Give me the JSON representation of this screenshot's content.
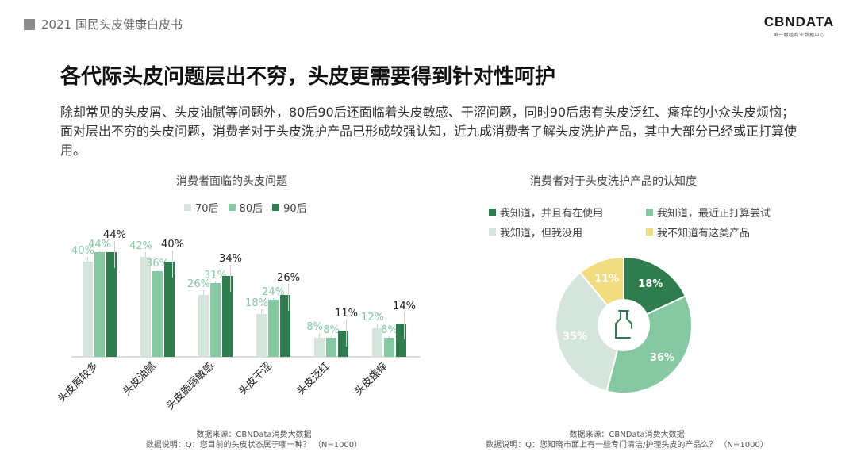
{
  "header": {
    "report_title": "2021 国民头皮健康白皮书",
    "logo": "CBNDATA",
    "logo_sub": "第一财经商业数据中心"
  },
  "title": "各代际头皮问题层出不穷，头皮更需要得到针对性呵护",
  "description": "除却常见的头皮屑、头皮油腻等问题外，80后90后还面临着头皮敏感、干涩问题，同时90后患有头皮泛红、瘙痒的小众头皮烦恼；面对层出不穷的头皮问题，消费者对于头皮洗护产品已形成较强认知，近九成消费者了解头皮洗护产品，其中大部分已经或正打算使用。",
  "watermark": "CBNData",
  "colors": {
    "c70": "#d6e5dc",
    "c80": "#86c8a2",
    "c90": "#2f7d4f",
    "c90label": "#222222"
  },
  "left_chart": {
    "title": "消费者面临的头皮问题",
    "source_line1": "数据来源：CBNData消费大数据",
    "source_line2": "数据说明：Q：您目前的头皮状态属于哪一种？ （N=1000）"
  },
  "right_chart": {
    "title": "消费者对于头皮洗护产品的认知度",
    "source_line1": "数据来源：CBNData消费大数据",
    "source_line2": "数据说明：Q：您知晓市面上有一些专门清洁/护理头皮的产品么？ （N=1000）",
    "center_icon": "bottle-icon"
  },
  "chart_data": [
    {
      "type": "bar",
      "title": "消费者面临的头皮问题",
      "categories": [
        "头皮屑较多",
        "头皮油腻",
        "头皮脆弱敏感",
        "头皮干涩",
        "头皮泛红",
        "头皮瘙痒"
      ],
      "series": [
        {
          "name": "70后",
          "values": [
            40,
            42,
            26,
            18,
            8,
            12
          ],
          "labels": [
            "40%",
            "42%",
            "26%",
            "18%",
            "8%",
            "12%"
          ],
          "color": "#d6e5dc"
        },
        {
          "name": "80后",
          "values": [
            44,
            36,
            31,
            24,
            8,
            8
          ],
          "labels": [
            "44%",
            "36%",
            "31%",
            "24%",
            "8%",
            "8%"
          ],
          "color": "#86c8a2"
        },
        {
          "name": "90后",
          "values": [
            44,
            40,
            34,
            26,
            11,
            14
          ],
          "labels": [
            "44%",
            "40%",
            "34%",
            "26%",
            "11%",
            "14%"
          ],
          "color": "#2f7d4f"
        }
      ],
      "ylim": [
        0,
        50
      ],
      "legend": "top"
    },
    {
      "type": "pie",
      "title": "消费者对于头皮洗护产品的认知度",
      "slices": [
        {
          "name": "我知道，并且有在使用",
          "value": 18,
          "label": "18%",
          "color": "#2f7d4f"
        },
        {
          "name": "我知道，最近正打算尝试",
          "value": 36,
          "label": "36%",
          "color": "#86c8a2"
        },
        {
          "name": "我知道，但我没用",
          "value": 35,
          "label": "35%",
          "color": "#d6e5dc"
        },
        {
          "name": "我不知道有这类产品",
          "value": 11,
          "label": "11%",
          "color": "#f2dc80"
        }
      ],
      "legend": "top"
    }
  ]
}
